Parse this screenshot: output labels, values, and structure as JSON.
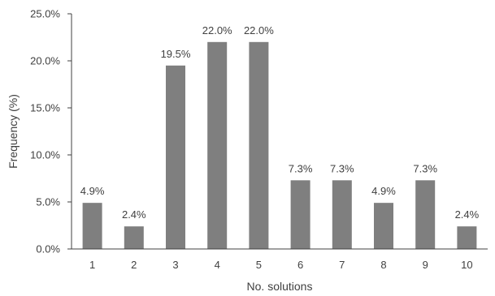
{
  "chart_data": {
    "type": "bar",
    "categories": [
      "1",
      "2",
      "3",
      "4",
      "5",
      "6",
      "7",
      "8",
      "9",
      "10"
    ],
    "values": [
      4.9,
      2.4,
      19.5,
      22.0,
      22.0,
      7.3,
      7.3,
      4.9,
      7.3,
      2.4
    ],
    "data_labels": [
      "4.9%",
      "2.4%",
      "19.5%",
      "22.0%",
      "22.0%",
      "7.3%",
      "7.3%",
      "4.9%",
      "7.3%",
      "2.4%"
    ],
    "y_ticks": [
      0,
      5,
      10,
      15,
      20,
      25
    ],
    "y_tick_labels": [
      "0.0%",
      "5.0%",
      "10.0%",
      "15.0%",
      "20.0%",
      "25.0%"
    ],
    "ylim": [
      0,
      25
    ],
    "xlabel": "No. solutions",
    "ylabel": "Frequency (%)",
    "grid": false,
    "legend": "none",
    "bar_color": "#7f7f7f",
    "axis_color": "#404040"
  }
}
